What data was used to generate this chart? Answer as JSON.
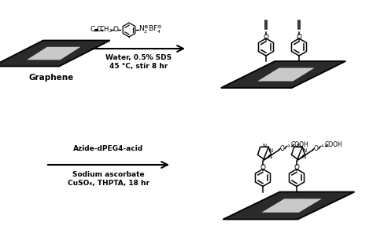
{
  "bg_color": "#ffffff",
  "text_color": "#000000",
  "graphene_label": "Graphene",
  "reaction1_line1": "Water, 0.5% SDS",
  "reaction1_line2": "45 °C, stir 8 hr",
  "reaction2_line1": "Azide-dPEG4-acid",
  "reaction2_line2": "Sodium ascorbate",
  "reaction2_line3": "CuSO₄, THPTA, 18 hr"
}
